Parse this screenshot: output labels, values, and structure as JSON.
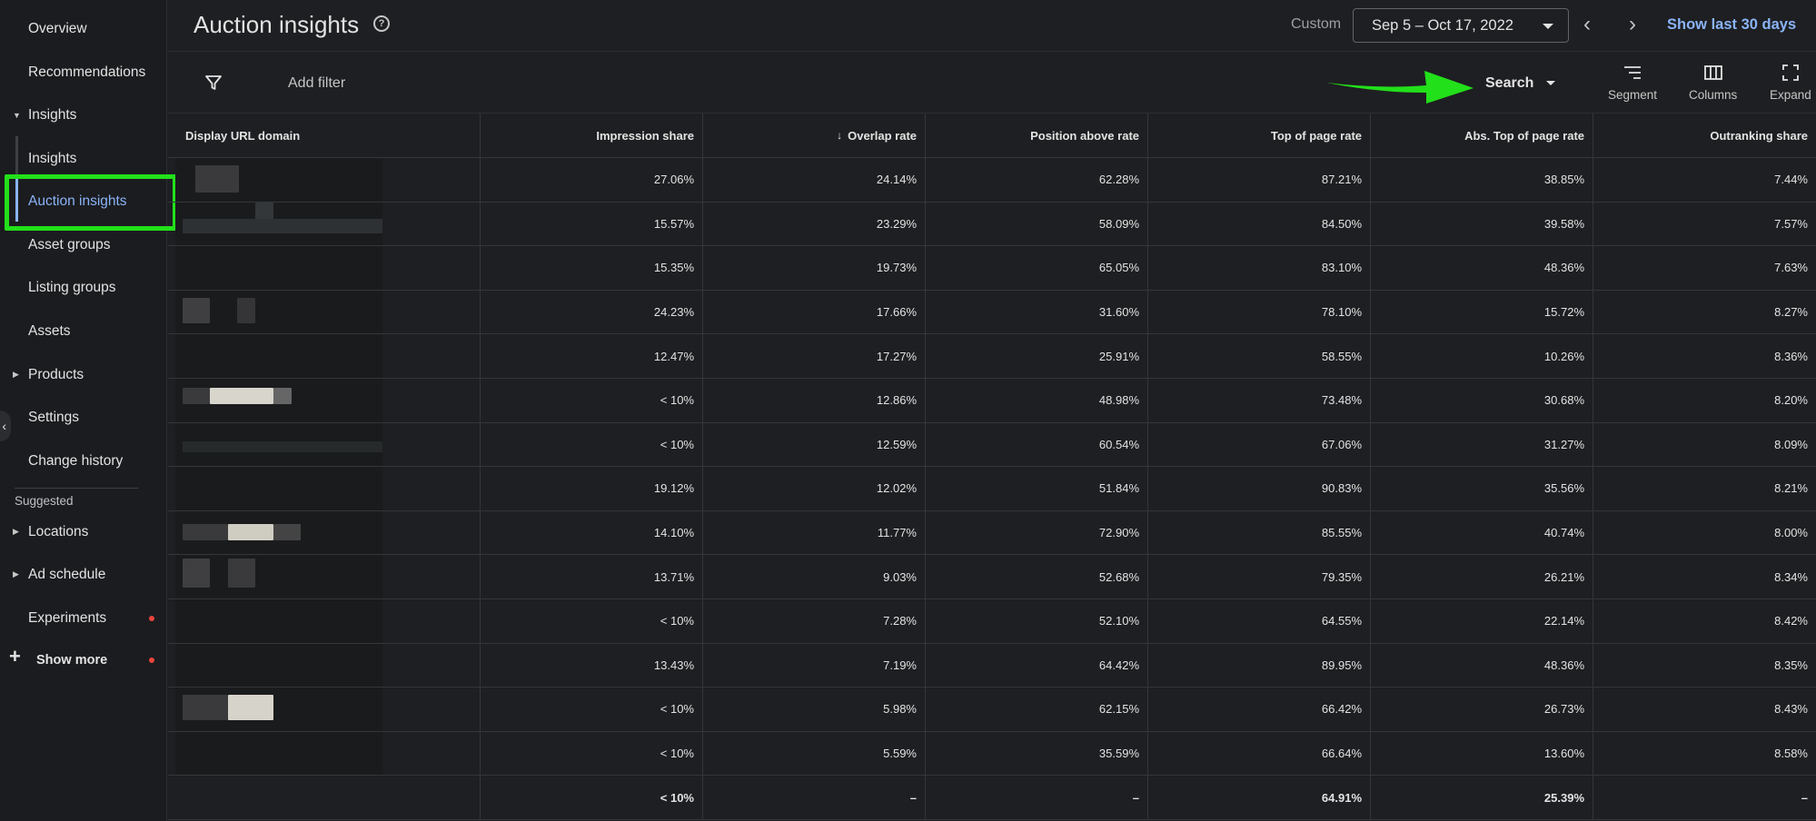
{
  "sidebar": {
    "items": [
      {
        "label": "Overview"
      },
      {
        "label": "Recommendations"
      },
      {
        "label": "Insights"
      },
      {
        "label": "Insights"
      },
      {
        "label": "Auction insights"
      },
      {
        "label": "Asset groups"
      },
      {
        "label": "Listing groups"
      },
      {
        "label": "Assets"
      },
      {
        "label": "Products"
      },
      {
        "label": "Settings"
      },
      {
        "label": "Change history"
      }
    ],
    "suggested_heading": "Suggested",
    "suggested": [
      {
        "label": "Locations"
      },
      {
        "label": "Ad schedule"
      },
      {
        "label": "Experiments"
      }
    ],
    "show_more": "Show more",
    "accent_color": "#8ab4f8",
    "highlight_color": "#22e01a"
  },
  "header": {
    "title": "Auction insights",
    "custom_label": "Custom",
    "date_range": "Sep 5 – Oct 17, 2022",
    "show_last": "Show last 30 days"
  },
  "toolbar": {
    "add_filter": "Add filter",
    "search_label": "Search",
    "segment_label": "Segment",
    "columns_label": "Columns",
    "expand_label": "Expand"
  },
  "table": {
    "columns": [
      "Display URL domain",
      "Impression share",
      "Overlap rate",
      "Position above rate",
      "Top of page rate",
      "Abs. Top of page rate",
      "Outranking share"
    ],
    "rows": [
      [
        "27.06%",
        "24.14%",
        "62.28%",
        "87.21%",
        "38.85%",
        "7.44%"
      ],
      [
        "15.57%",
        "23.29%",
        "58.09%",
        "84.50%",
        "39.58%",
        "7.57%"
      ],
      [
        "15.35%",
        "19.73%",
        "65.05%",
        "83.10%",
        "48.36%",
        "7.63%"
      ],
      [
        "24.23%",
        "17.66%",
        "31.60%",
        "78.10%",
        "15.72%",
        "8.27%"
      ],
      [
        "12.47%",
        "17.27%",
        "25.91%",
        "58.55%",
        "10.26%",
        "8.36%"
      ],
      [
        "< 10%",
        "12.86%",
        "48.98%",
        "73.48%",
        "30.68%",
        "8.20%"
      ],
      [
        "< 10%",
        "12.59%",
        "60.54%",
        "67.06%",
        "31.27%",
        "8.09%"
      ],
      [
        "19.12%",
        "12.02%",
        "51.84%",
        "90.83%",
        "35.56%",
        "8.21%"
      ],
      [
        "14.10%",
        "11.77%",
        "72.90%",
        "85.55%",
        "40.74%",
        "8.00%"
      ],
      [
        "13.71%",
        "9.03%",
        "52.68%",
        "79.35%",
        "26.21%",
        "8.34%"
      ],
      [
        "< 10%",
        "7.28%",
        "52.10%",
        "64.55%",
        "22.14%",
        "8.42%"
      ],
      [
        "13.43%",
        "7.19%",
        "64.42%",
        "89.95%",
        "48.36%",
        "8.35%"
      ],
      [
        "< 10%",
        "5.98%",
        "62.15%",
        "66.42%",
        "26.73%",
        "8.43%"
      ],
      [
        "< 10%",
        "5.59%",
        "35.59%",
        "66.64%",
        "13.60%",
        "8.58%"
      ]
    ],
    "total": [
      "< 10%",
      "–",
      "–",
      "64.91%",
      "25.39%",
      "–"
    ]
  }
}
